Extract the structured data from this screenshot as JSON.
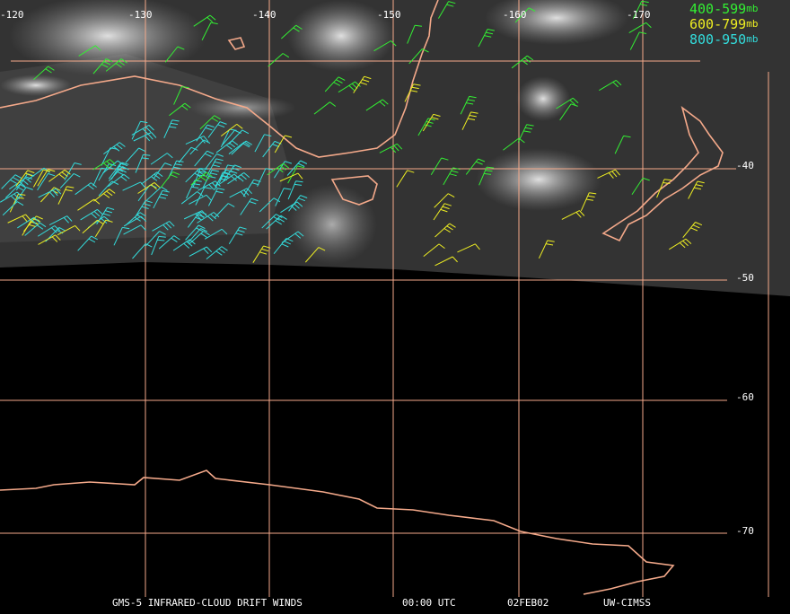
{
  "map": {
    "longitude_labels": [
      "-120",
      "-130",
      "-140",
      "-150",
      "-160",
      "-170"
    ],
    "latitude_labels": [
      "-40",
      "-50",
      "-60",
      "-70"
    ],
    "legend": [
      {
        "range": "400-599",
        "unit": "mb",
        "color": "#33ee33"
      },
      {
        "range": "600-799",
        "unit": "mb",
        "color": "#eeee22"
      },
      {
        "range": "800-950",
        "unit": "mb",
        "color": "#33dddd"
      }
    ],
    "footer": [
      "GMS-5 INFRARED-CLOUD DRIFT WINDS",
      "00:00 UTC",
      "02FEB02",
      "UW-CIMSS"
    ]
  }
}
